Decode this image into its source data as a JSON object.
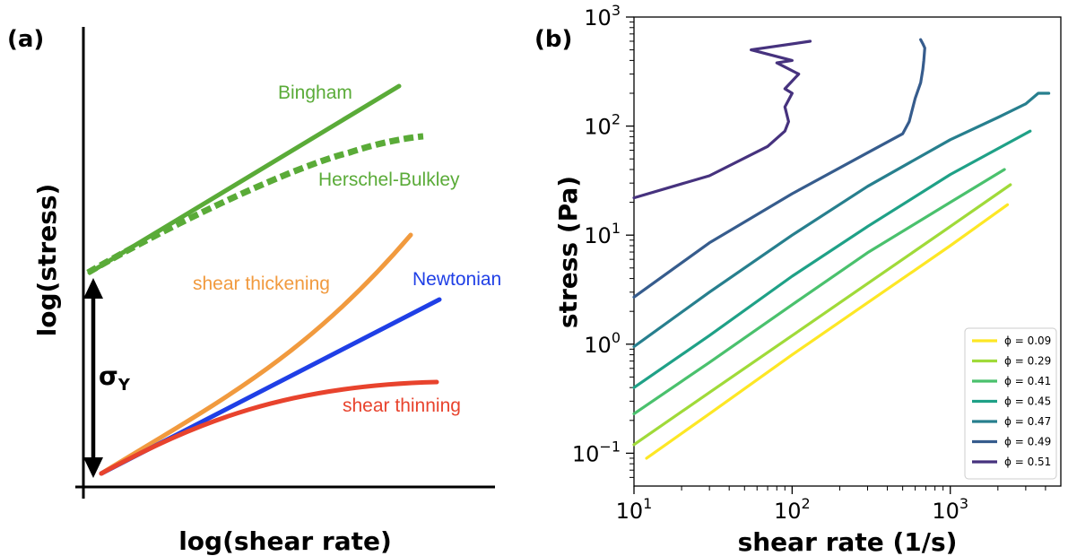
{
  "panel_a": {
    "letter": "(a)",
    "xlabel": "log(shear rate)",
    "ylabel": "log(stress)",
    "yield_label": "σ",
    "yield_sub": "Y",
    "curves": [
      {
        "label": "Bingham",
        "color": "#5aab38"
      },
      {
        "label": "Herschel-Bulkley",
        "color": "#5aab38"
      },
      {
        "label": "shear thickening",
        "color": "#f19a3e"
      },
      {
        "label": "Newtonian",
        "color": "#1f3fe6"
      },
      {
        "label": "shear thinning",
        "color": "#e8432d"
      }
    ]
  },
  "panel_b": {
    "letter": "(b)"
  },
  "chart_data": {
    "type": "line",
    "xlabel": "shear rate (1/s)",
    "ylabel": "stress (Pa)",
    "xscale": "log",
    "yscale": "log",
    "xlim": [
      10,
      5000
    ],
    "ylim": [
      0.05,
      1000
    ],
    "xticks": [
      {
        "value": 10,
        "base": "10",
        "exp": "1"
      },
      {
        "value": 100,
        "base": "10",
        "exp": "2"
      },
      {
        "value": 1000,
        "base": "10",
        "exp": "3"
      }
    ],
    "yticks": [
      {
        "value": 0.1,
        "base": "10",
        "exp": "−1"
      },
      {
        "value": 1,
        "base": "10",
        "exp": "0"
      },
      {
        "value": 10,
        "base": "10",
        "exp": "1"
      },
      {
        "value": 100,
        "base": "10",
        "exp": "2"
      },
      {
        "value": 1000,
        "base": "10",
        "exp": "3"
      }
    ],
    "legend_position": "lower-right",
    "series": [
      {
        "name": "ϕ = 0.09",
        "color": "#fde725",
        "x": [
          12,
          30,
          100,
          300,
          1000,
          2300
        ],
        "y": [
          0.09,
          0.23,
          0.8,
          2.4,
          8,
          19
        ]
      },
      {
        "name": "ϕ = 0.29",
        "color": "#a0da39",
        "x": [
          10,
          30,
          100,
          300,
          1000,
          2400
        ],
        "y": [
          0.12,
          0.36,
          1.2,
          3.6,
          12,
          29
        ]
      },
      {
        "name": "ϕ = 0.41",
        "color": "#4ac16d",
        "x": [
          10,
          30,
          100,
          300,
          1000,
          2200
        ],
        "y": [
          0.23,
          0.68,
          2.3,
          6.9,
          20,
          40
        ]
      },
      {
        "name": "ϕ = 0.45",
        "color": "#1fa187",
        "x": [
          10,
          30,
          100,
          300,
          1000,
          3200
        ],
        "y": [
          0.4,
          1.2,
          4.2,
          12,
          36,
          90
        ]
      },
      {
        "name": "ϕ = 0.47",
        "color": "#277f8e",
        "x": [
          10,
          30,
          100,
          300,
          1000,
          2000,
          3000,
          3600,
          4200
        ],
        "y": [
          0.95,
          3,
          10,
          28,
          75,
          120,
          160,
          200,
          200
        ]
      },
      {
        "name": "ϕ = 0.49",
        "color": "#365c8d",
        "x": [
          10,
          30,
          100,
          300,
          500,
          550,
          600,
          650,
          670,
          680,
          690,
          670,
          650
        ],
        "y": [
          2.7,
          8.5,
          24,
          57,
          85,
          110,
          180,
          250,
          330,
          400,
          520,
          570,
          620
        ]
      },
      {
        "name": "ϕ = 0.51",
        "color": "#46327e",
        "x": [
          10,
          30,
          70,
          90,
          95,
          90,
          100,
          90,
          110,
          80,
          100,
          55,
          130
        ],
        "y": [
          22,
          35,
          65,
          90,
          110,
          150,
          200,
          220,
          300,
          380,
          400,
          500,
          600
        ]
      }
    ]
  }
}
